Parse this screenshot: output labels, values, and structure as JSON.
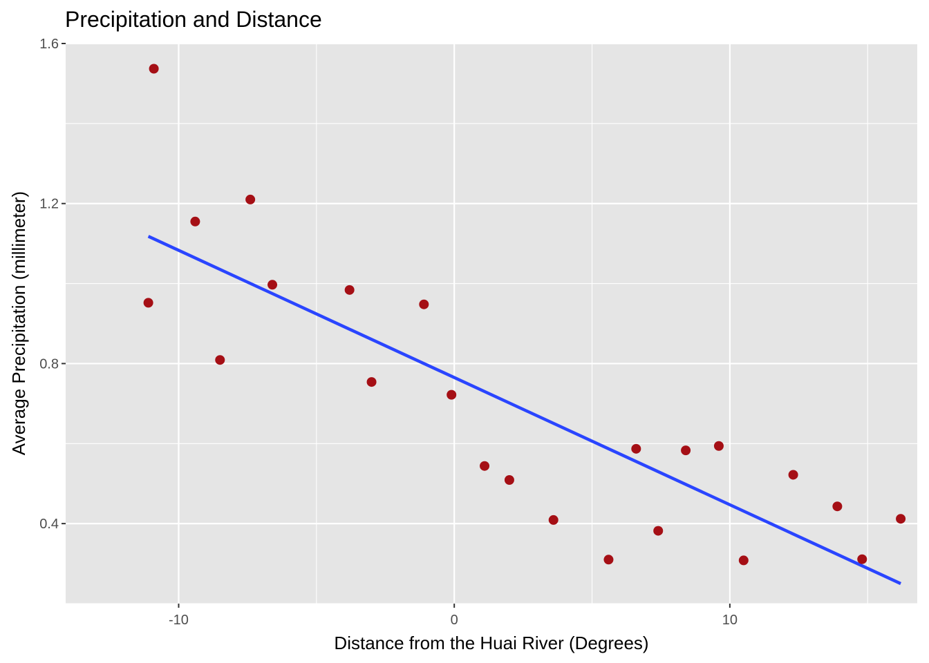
{
  "chart_data": {
    "type": "scatter",
    "title": "Precipitation and Distance",
    "xlabel": "Distance from the Huai River (Degrees)",
    "ylabel": "Average Precipitation (millimeter)",
    "xlim": [
      -14.1,
      16.8
    ],
    "ylim": [
      0.2,
      1.6
    ],
    "x_ticks": [
      -10,
      0,
      10
    ],
    "x_tick_labels": [
      "-10",
      "0",
      "10"
    ],
    "x_minor_ticks": [
      -5,
      5,
      15
    ],
    "y_ticks": [
      0.4,
      0.8,
      1.2,
      1.6
    ],
    "y_tick_labels": [
      "0.4",
      "0.8",
      "1.2",
      "1.6"
    ],
    "y_minor_ticks": [
      0.2,
      0.6,
      1.0,
      1.4
    ],
    "grid": true,
    "legend": "none",
    "colors": {
      "panel_background": "#e5e5e5",
      "grid": "#ffffff",
      "points": "#a50f15",
      "fit_line": "#2a45ff",
      "tick_text": "#4d4d4d",
      "tick_mark": "#333333"
    },
    "series": [
      {
        "values_x": [
          -11.1,
          -10.9,
          -9.4,
          -8.5,
          -7.4,
          -6.6,
          -3.8,
          -3.0,
          -1.1,
          -0.1,
          1.1,
          2.0,
          3.6,
          5.6,
          6.6,
          7.4,
          8.4,
          9.6,
          10.5,
          12.3,
          13.9,
          14.8,
          16.2
        ],
        "values_y": [
          0.952,
          1.537,
          1.155,
          0.809,
          1.21,
          0.997,
          0.984,
          0.754,
          0.948,
          0.722,
          0.544,
          0.509,
          0.409,
          0.31,
          0.587,
          0.382,
          0.583,
          0.594,
          0.308,
          0.522,
          0.443,
          0.311,
          0.412
        ]
      }
    ],
    "fit_line": {
      "type": "line",
      "x": [
        -11.1,
        16.2
      ],
      "y": [
        1.118,
        0.25
      ]
    }
  }
}
